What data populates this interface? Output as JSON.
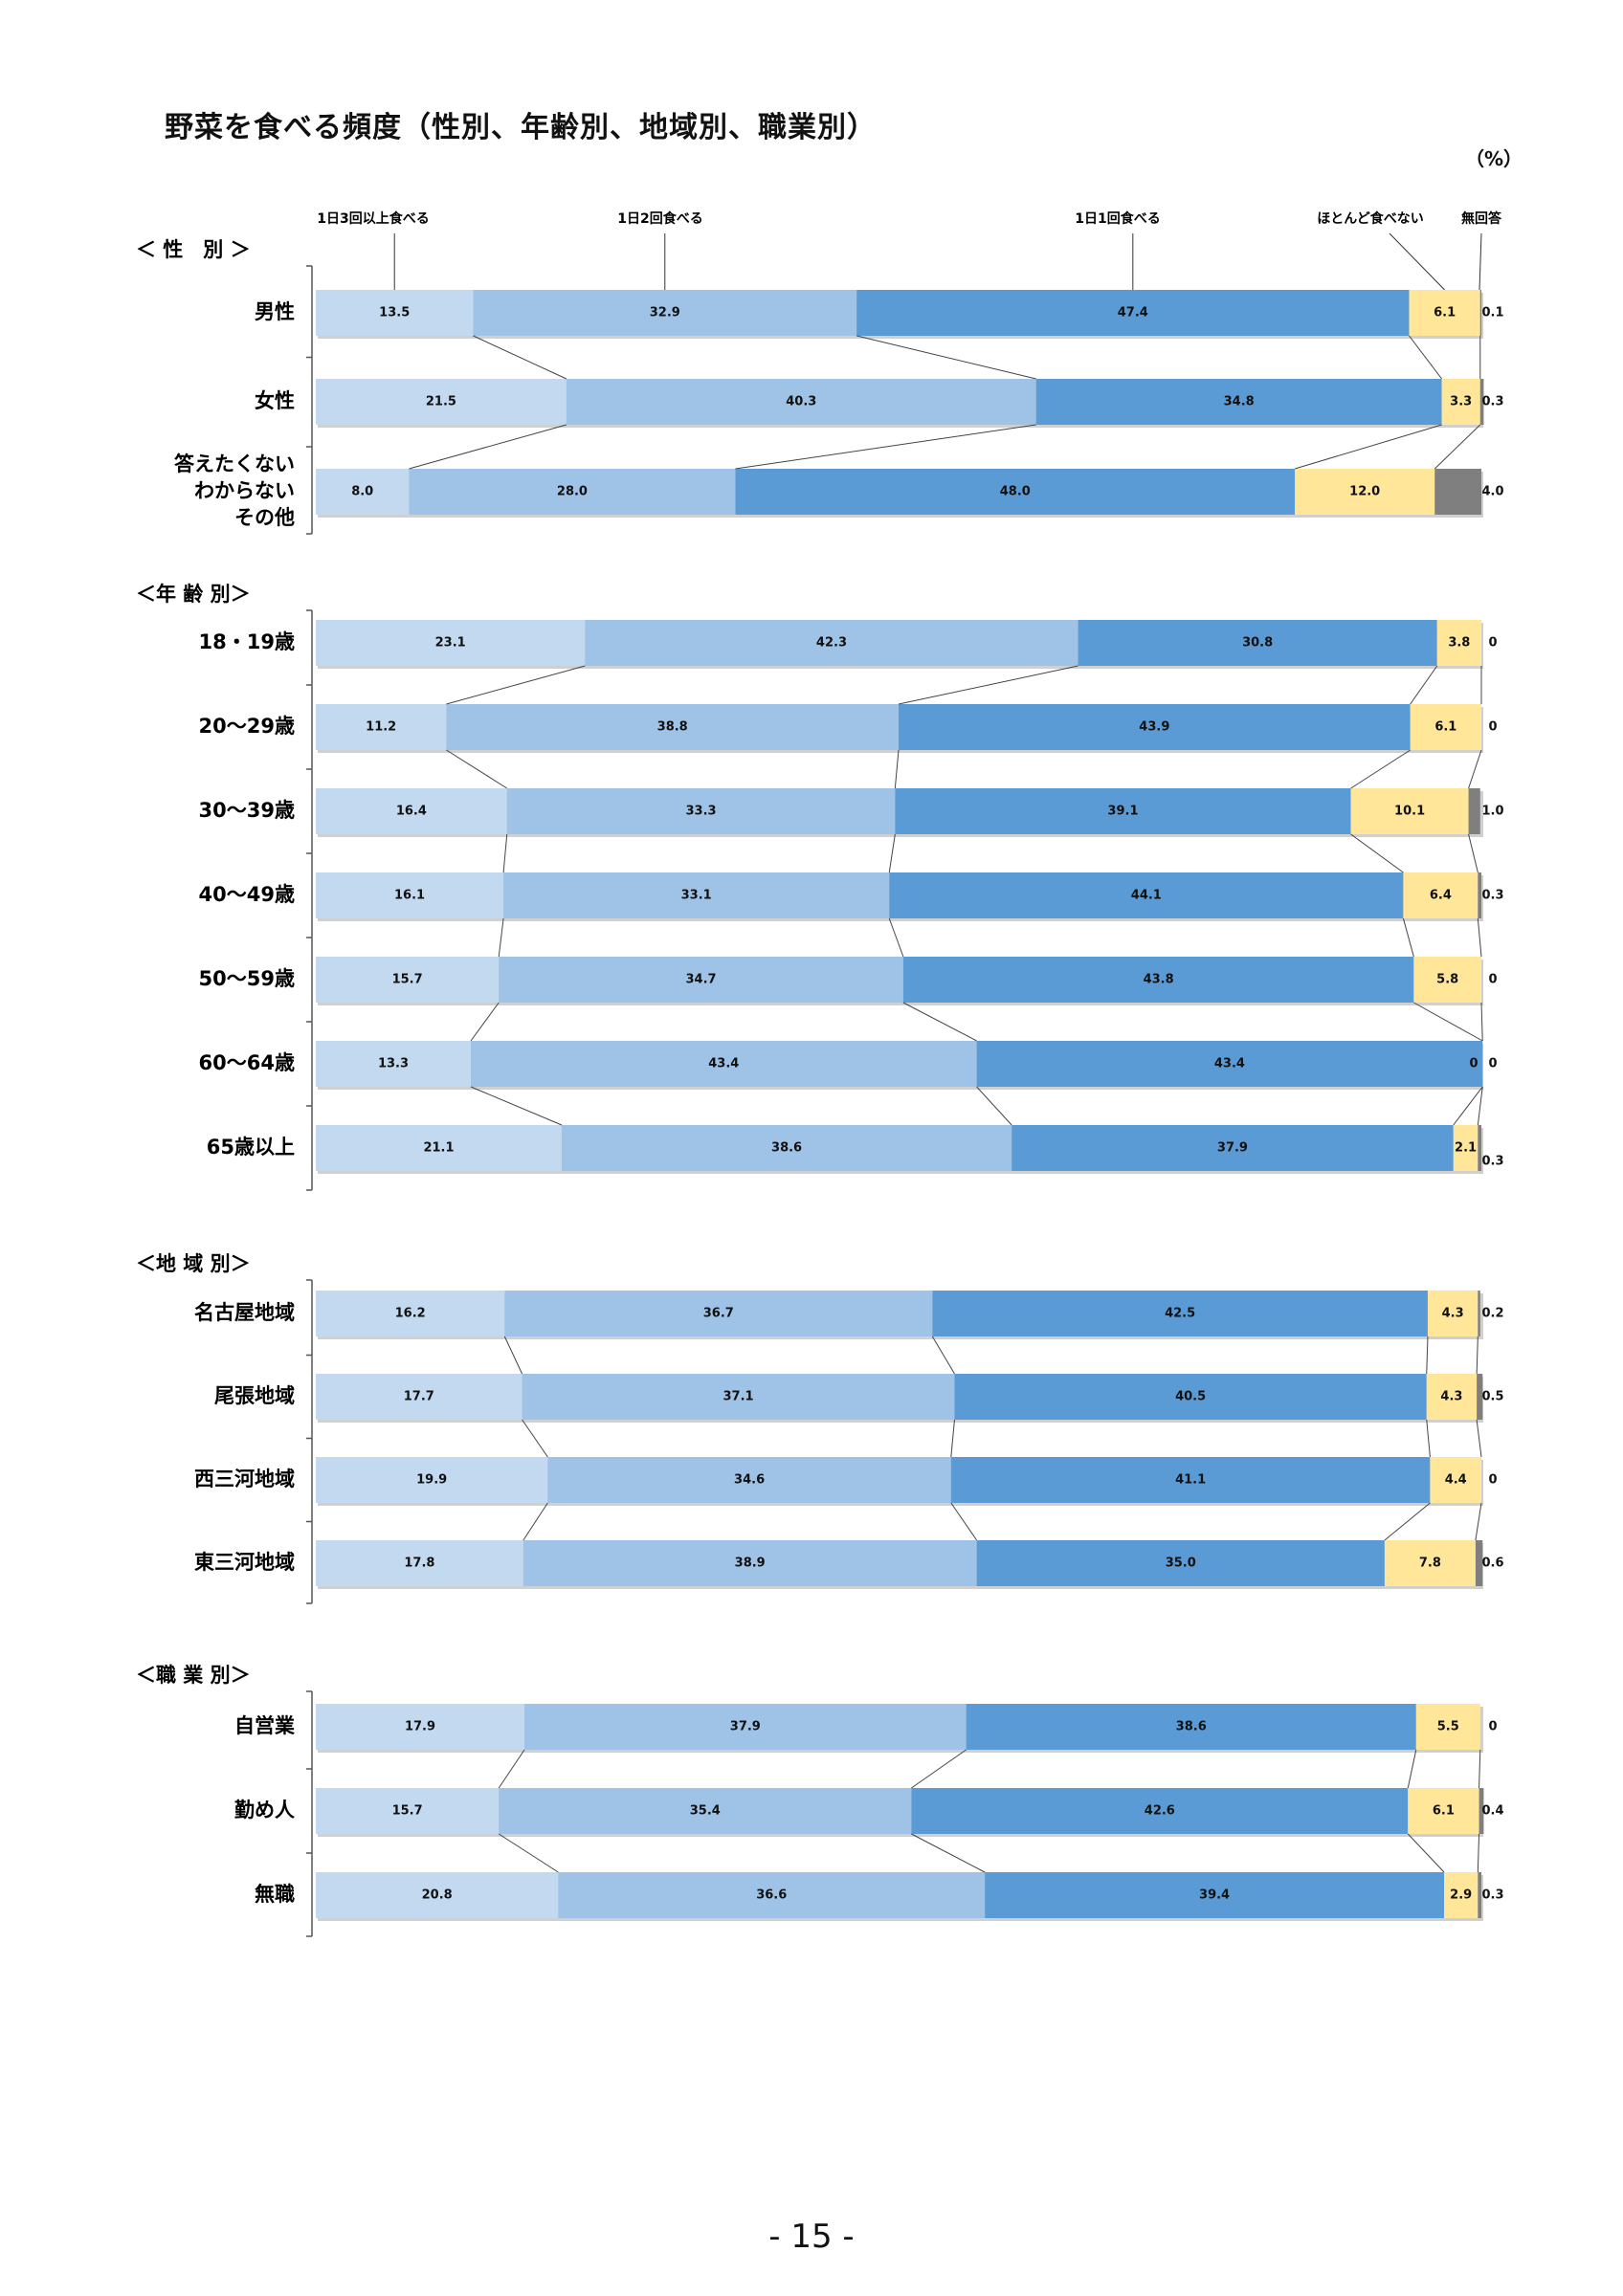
{
  "title": "野菜を食べる頻度（性別、年齢別、地域別、職業別）",
  "unit": "（%）",
  "page_number": "- 15 -",
  "colors": {
    "c1": "#c3d9f0",
    "c2": "#9fc2e7",
    "c3": "#5b9bd5",
    "c4": "#ffe699",
    "c5": "#7f7f7f"
  },
  "chart_data": {
    "type": "stacked-bar-horizontal-100",
    "series": [
      {
        "name": "1日3回以上食べる"
      },
      {
        "name": "1日2回食べる"
      },
      {
        "name": "1日1回食べる"
      },
      {
        "name": "ほとんど食べない"
      },
      {
        "name": "無回答"
      }
    ],
    "groups": [
      {
        "title": "＜ 性　別 ＞",
        "rows": [
          {
            "label": [
              "男性"
            ],
            "values": [
              13.5,
              32.9,
              47.4,
              6.1,
              0.1
            ],
            "labels": [
              "13.5",
              "32.9",
              "47.4",
              "6.1",
              "0.1"
            ]
          },
          {
            "label": [
              "女性"
            ],
            "values": [
              21.5,
              40.3,
              34.8,
              3.3,
              0.3
            ],
            "labels": [
              "21.5",
              "40.3",
              "34.8",
              "3.3",
              "0.3"
            ]
          },
          {
            "label": [
              "答えたくない",
              "わからない",
              "その他"
            ],
            "values": [
              8.0,
              28.0,
              48.0,
              12.0,
              4.0
            ],
            "labels": [
              "8.0",
              "28.0",
              "48.0",
              "12.0",
              "4.0"
            ]
          }
        ]
      },
      {
        "title": "＜年 齢 別＞",
        "rows": [
          {
            "label": [
              "18・19歳"
            ],
            "values": [
              23.1,
              42.3,
              30.8,
              3.8,
              0
            ],
            "labels": [
              "23.1",
              "42.3",
              "30.8",
              "3.8",
              "0"
            ]
          },
          {
            "label": [
              "20～29歳"
            ],
            "values": [
              11.2,
              38.8,
              43.9,
              6.1,
              0
            ],
            "labels": [
              "11.2",
              "38.8",
              "43.9",
              "6.1",
              "0"
            ]
          },
          {
            "label": [
              "30～39歳"
            ],
            "values": [
              16.4,
              33.3,
              39.1,
              10.1,
              1.0
            ],
            "labels": [
              "16.4",
              "33.3",
              "39.1",
              "10.1",
              "1.0"
            ]
          },
          {
            "label": [
              "40～49歳"
            ],
            "values": [
              16.1,
              33.1,
              44.1,
              6.4,
              0.3
            ],
            "labels": [
              "16.1",
              "33.1",
              "44.1",
              "6.4",
              "0.3"
            ]
          },
          {
            "label": [
              "50～59歳"
            ],
            "values": [
              15.7,
              34.7,
              43.8,
              5.8,
              0
            ],
            "labels": [
              "15.7",
              "34.7",
              "43.8",
              "5.8",
              "0"
            ]
          },
          {
            "label": [
              "60～64歳"
            ],
            "values": [
              13.3,
              43.4,
              43.4,
              0,
              0
            ],
            "labels": [
              "13.3",
              "43.4",
              "43.4",
              "0",
              "0"
            ]
          },
          {
            "label": [
              "65歳以上"
            ],
            "values": [
              21.1,
              38.6,
              37.9,
              2.1,
              0.3
            ],
            "labels": [
              "21.1",
              "38.6",
              "37.9",
              "2.1",
              "0.3"
            ]
          }
        ]
      },
      {
        "title": "＜地 域 別＞",
        "rows": [
          {
            "label": [
              "名古屋地域"
            ],
            "values": [
              16.2,
              36.7,
              42.5,
              4.3,
              0.2
            ],
            "labels": [
              "16.2",
              "36.7",
              "42.5",
              "4.3",
              "0.2"
            ]
          },
          {
            "label": [
              "尾張地域"
            ],
            "values": [
              17.7,
              37.1,
              40.5,
              4.3,
              0.5
            ],
            "labels": [
              "17.7",
              "37.1",
              "40.5",
              "4.3",
              "0.5"
            ]
          },
          {
            "label": [
              "西三河地域"
            ],
            "values": [
              19.9,
              34.6,
              41.1,
              4.4,
              0
            ],
            "labels": [
              "19.9",
              "34.6",
              "41.1",
              "4.4",
              "0"
            ]
          },
          {
            "label": [
              "東三河地域"
            ],
            "values": [
              17.8,
              38.9,
              35.0,
              7.8,
              0.6
            ],
            "labels": [
              "17.8",
              "38.9",
              "35.0",
              "7.8",
              "0.6"
            ]
          }
        ]
      },
      {
        "title": "＜職 業 別＞",
        "rows": [
          {
            "label": [
              "自営業"
            ],
            "values": [
              17.9,
              37.9,
              38.6,
              5.5,
              0
            ],
            "labels": [
              "17.9",
              "37.9",
              "38.6",
              "5.5",
              "0"
            ]
          },
          {
            "label": [
              "勤め人"
            ],
            "values": [
              15.7,
              35.4,
              42.6,
              6.1,
              0.4
            ],
            "labels": [
              "15.7",
              "35.4",
              "42.6",
              "6.1",
              "0.4"
            ]
          },
          {
            "label": [
              "無職"
            ],
            "values": [
              20.8,
              36.6,
              39.4,
              2.9,
              0.3
            ],
            "labels": [
              "20.8",
              "36.6",
              "39.4",
              "2.9",
              "0.3"
            ]
          }
        ]
      }
    ]
  }
}
